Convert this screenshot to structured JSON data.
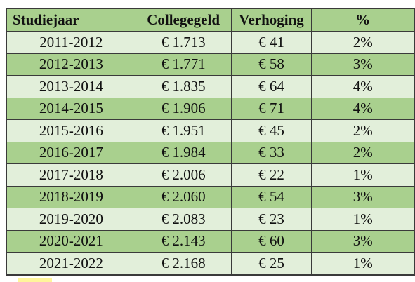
{
  "table": {
    "headers": {
      "year": "Studiejaar",
      "fee": "Collegegeld",
      "increase": "Verhoging",
      "percent": "%"
    },
    "rows": [
      {
        "year": "2011-2012",
        "fee": "€ 1.713",
        "increase": "€ 41",
        "percent": "2%"
      },
      {
        "year": "2012-2013",
        "fee": "€ 1.771",
        "increase": "€ 58",
        "percent": "3%"
      },
      {
        "year": "2013-2014",
        "fee": "€ 1.835",
        "increase": "€ 64",
        "percent": "4%"
      },
      {
        "year": "2014-2015",
        "fee": "€ 1.906",
        "increase": "€ 71",
        "percent": "4%"
      },
      {
        "year": "2015-2016",
        "fee": "€ 1.951",
        "increase": "€ 45",
        "percent": "2%"
      },
      {
        "year": "2016-2017",
        "fee": "€ 1.984",
        "increase": "€ 33",
        "percent": "2%"
      },
      {
        "year": "2017-2018",
        "fee": "€ 2.006",
        "increase": "€ 22",
        "percent": "1%"
      },
      {
        "year": "2018-2019",
        "fee": "€ 2.060",
        "increase": "€ 54",
        "percent": "3%"
      },
      {
        "year": "2019-2020",
        "fee": "€ 2.083",
        "increase": "€ 23",
        "percent": "1%"
      },
      {
        "year": "2020-2021",
        "fee": "€ 2.143",
        "increase": "€ 60",
        "percent": "3%"
      },
      {
        "year": "2021-2022",
        "fee": "€ 2.168",
        "increase": "€ 25",
        "percent": "1%"
      }
    ]
  },
  "colors": {
    "header_bg": "#a9d08e",
    "row_dark": "#a9d08e",
    "row_light": "#e2efda",
    "border": "#3a3a3a"
  }
}
